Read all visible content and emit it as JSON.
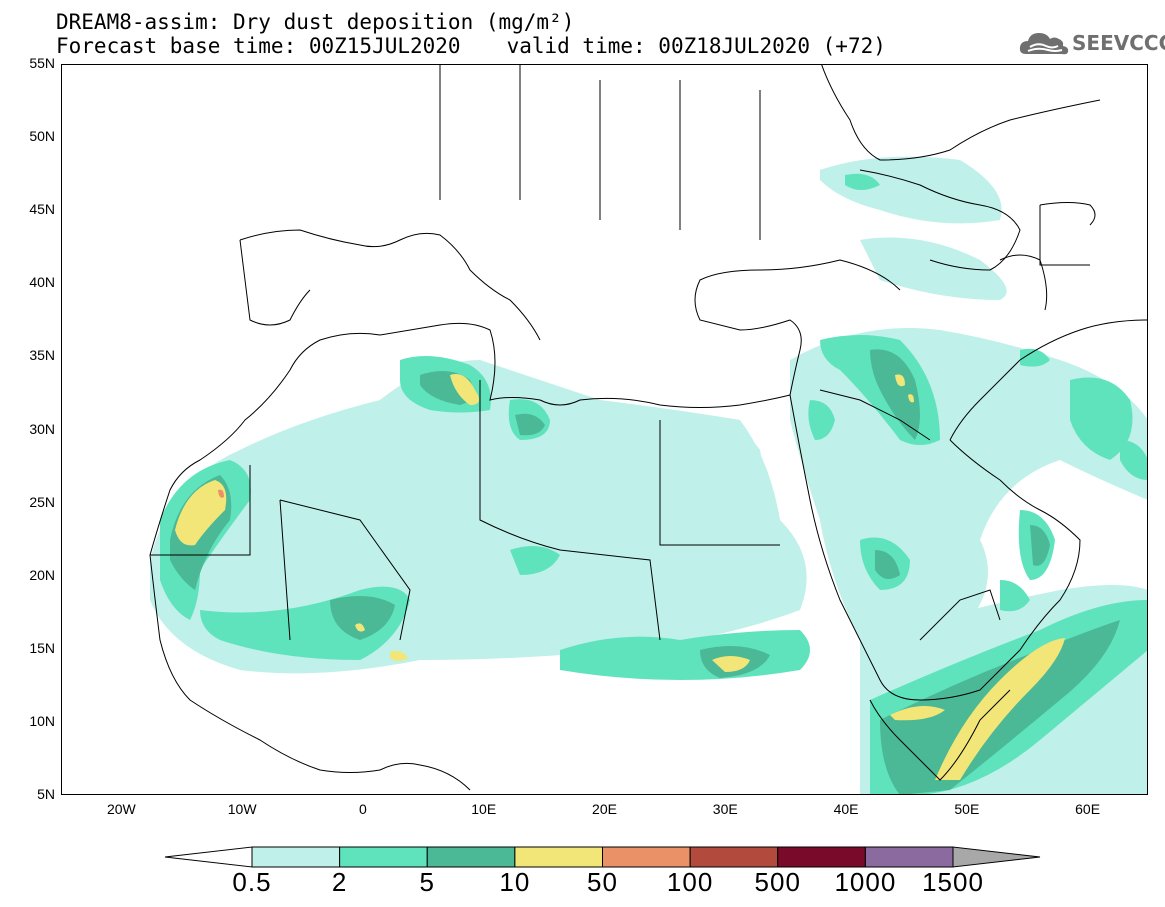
{
  "header": {
    "title_line": "DREAM8-assim: Dry dust deposition (mg/m²)",
    "base_time": "Forecast base time: 00Z15JUL2020",
    "valid_time": "valid time: 00Z18JUL2020 (+72)"
  },
  "logo": {
    "icon": "cloud-icon",
    "text": "SEEVCCC"
  },
  "map": {
    "region": "North Africa, Middle East and Europe",
    "lon_range": [
      -25,
      65
    ],
    "lat_range": [
      5,
      55
    ],
    "lat_labels": [
      "55N",
      "50N",
      "45N",
      "40N",
      "35N",
      "30N",
      "25N",
      "20N",
      "15N",
      "10N",
      "5N"
    ],
    "lon_labels": [
      "20W",
      "10W",
      "0",
      "10E",
      "20E",
      "30E",
      "40E",
      "50E",
      "60E"
    ]
  },
  "colorbar": {
    "labels": [
      "0.5",
      "2",
      "5",
      "10",
      "50",
      "100",
      "500",
      "1000",
      "1500"
    ],
    "colors": [
      "#ffffff",
      "#bff0ea",
      "#5fe3bd",
      "#4bb896",
      "#f2e679",
      "#ea9167",
      "#b24a3d",
      "#7a0a2a",
      "#8b6aa0",
      "#a8a8a8"
    ]
  }
}
